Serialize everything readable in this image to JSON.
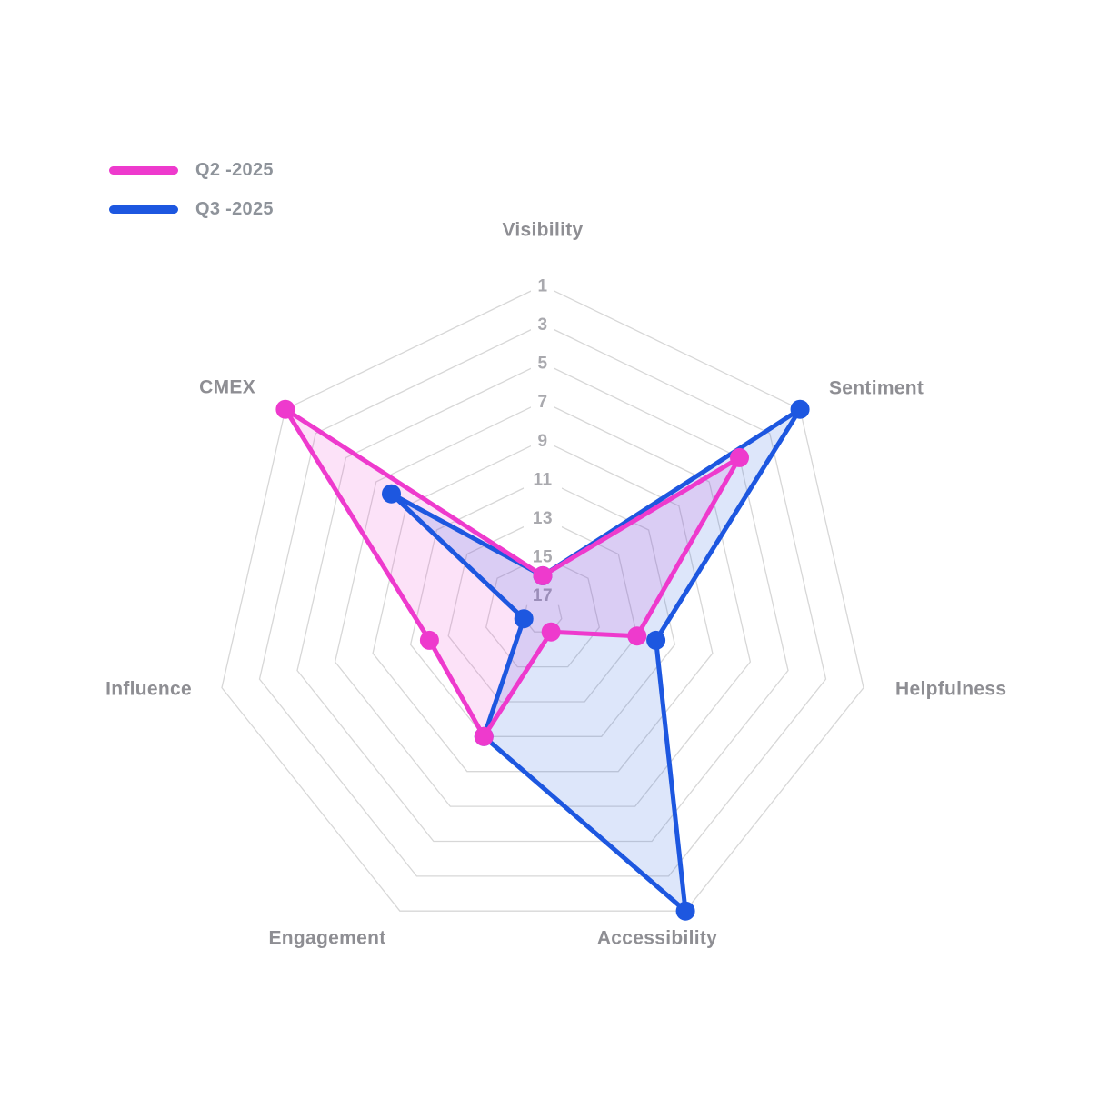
{
  "legend": {
    "items": [
      {
        "label": "Q2 -2025",
        "color": "#EE3ACD"
      },
      {
        "label": "Q3 -2025",
        "color": "#1D57E0"
      }
    ]
  },
  "chart_data": {
    "type": "radar",
    "categories": [
      "Visibility",
      "Sentiment",
      "Helpfulness",
      "Accessibility",
      "Engagement",
      "Influence",
      "CMEX"
    ],
    "series": [
      {
        "name": "Q2 -2025",
        "color": "#EE3ACD",
        "values": [
          16,
          5,
          13,
          17,
          11,
          12,
          1
        ]
      },
      {
        "name": "Q3 -2025",
        "color": "#1D57E0",
        "values": [
          16,
          1,
          12,
          1,
          11,
          17,
          8
        ]
      }
    ],
    "radial_axis": {
      "reversed": true,
      "outer_value": 1,
      "center_value": 18,
      "tick_labels": [
        "1",
        "3",
        "5",
        "7",
        "9",
        "11",
        "13",
        "15",
        "17"
      ]
    },
    "grid": {
      "shape": "polygon",
      "sides": 7,
      "ring_color": "#D7D7D7",
      "tick_text_color": "#A9A9AE",
      "category_text_color": "#8E8E93"
    },
    "legend_position": "top-left",
    "title": ""
  }
}
